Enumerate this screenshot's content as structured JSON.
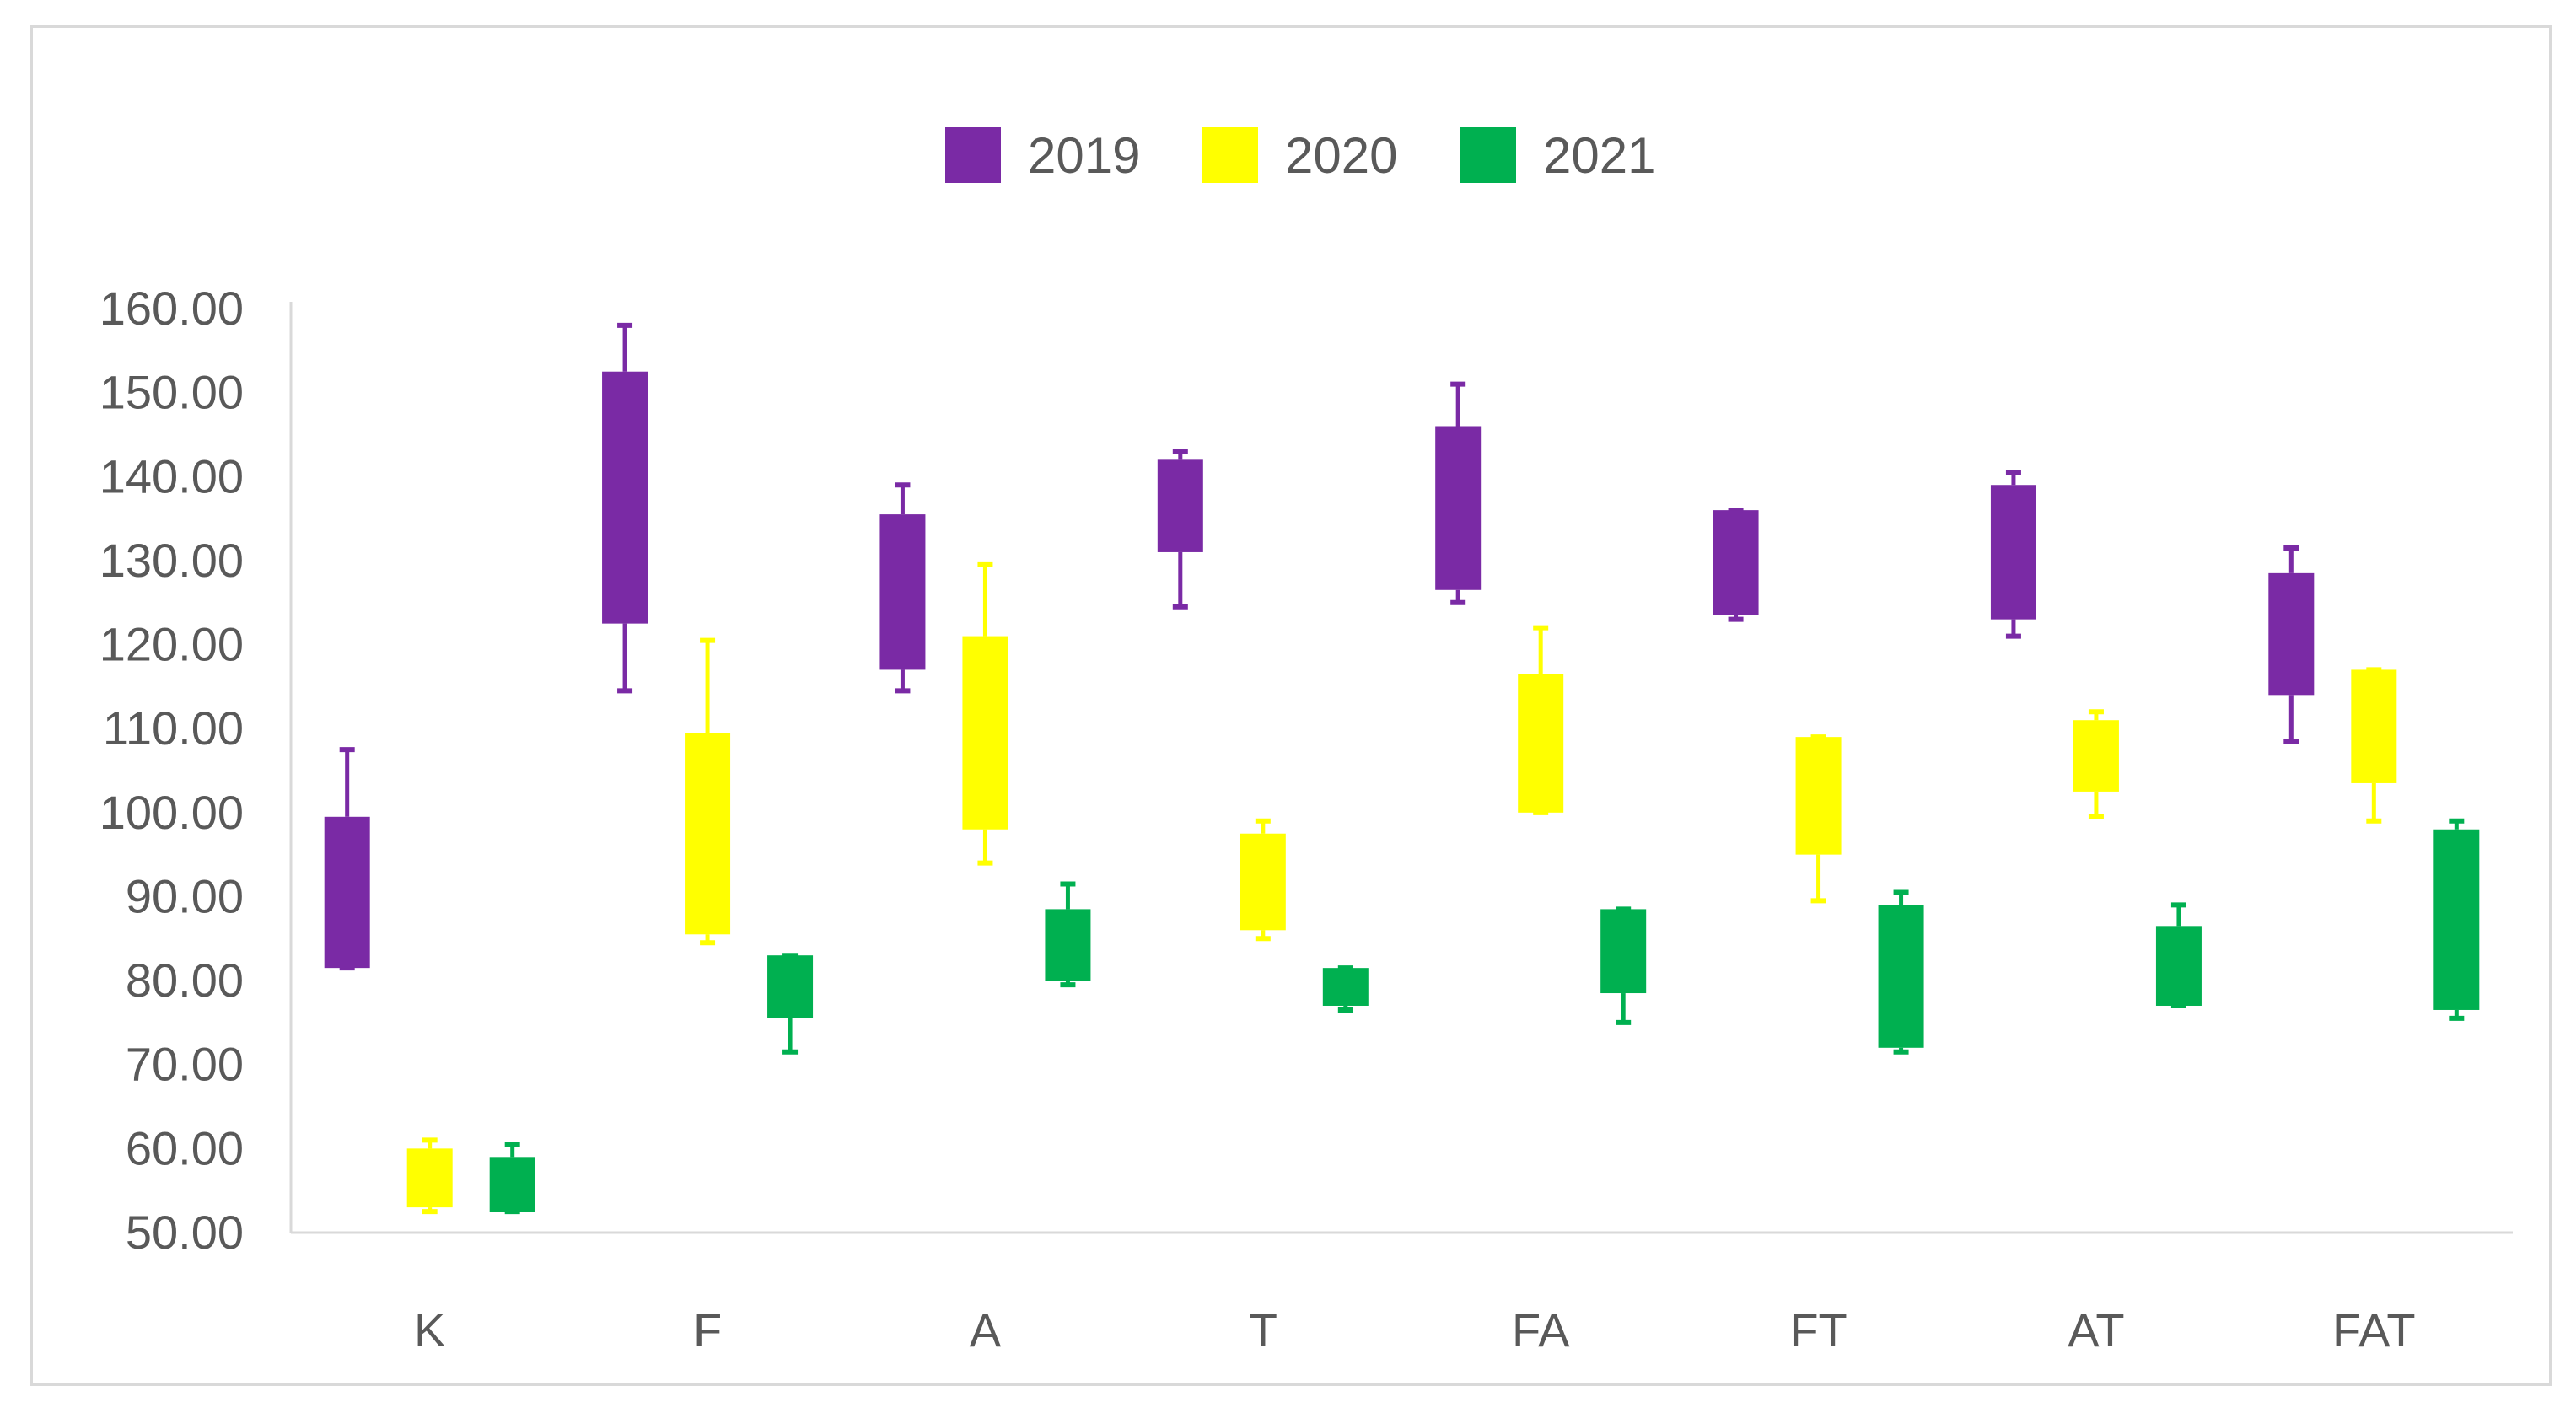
{
  "chart_data": {
    "type": "box",
    "title": "",
    "xlabel": "",
    "ylabel": "",
    "ylim": [
      50,
      160
    ],
    "y_ticks": [
      "50.00",
      "60.00",
      "70.00",
      "80.00",
      "90.00",
      "100.00",
      "110.00",
      "120.00",
      "130.00",
      "140.00",
      "150.00",
      "160.00"
    ],
    "categories": [
      "K",
      "F",
      "A",
      "T",
      "FA",
      "FT",
      "AT",
      "FAT"
    ],
    "legend": {
      "position": "top",
      "entries": [
        "2019",
        "2020",
        "2021"
      ]
    },
    "series": [
      {
        "name": "2019",
        "color": "#7a2aa5",
        "values": [
          {
            "min": 81.5,
            "q1": 81.5,
            "q3": 99.5,
            "max": 107.5
          },
          {
            "min": 114.5,
            "q1": 122.5,
            "q3": 152.5,
            "max": 158
          },
          {
            "min": 114.5,
            "q1": 117,
            "q3": 135.5,
            "max": 139
          },
          {
            "min": 124.5,
            "q1": 131,
            "q3": 142,
            "max": 143
          },
          {
            "min": 125,
            "q1": 126.5,
            "q3": 146,
            "max": 151
          },
          {
            "min": 123,
            "q1": 123.5,
            "q3": 136,
            "max": 136
          },
          {
            "min": 121,
            "q1": 123,
            "q3": 139,
            "max": 140.5
          },
          {
            "min": 108.5,
            "q1": 114,
            "q3": 128.5,
            "max": 131.5
          }
        ]
      },
      {
        "name": "2020",
        "color": "#ffff00",
        "values": [
          {
            "min": 52.5,
            "q1": 53,
            "q3": 60,
            "max": 61
          },
          {
            "min": 84.5,
            "q1": 85.5,
            "q3": 109.5,
            "max": 120.5
          },
          {
            "min": 94,
            "q1": 98,
            "q3": 121,
            "max": 129.5
          },
          {
            "min": 85,
            "q1": 86,
            "q3": 97.5,
            "max": 99
          },
          {
            "min": 100,
            "q1": 100,
            "q3": 116.5,
            "max": 122
          },
          {
            "min": 89.5,
            "q1": 95,
            "q3": 109,
            "max": 109
          },
          {
            "min": 99.5,
            "q1": 102.5,
            "q3": 111,
            "max": 112
          },
          {
            "min": 99,
            "q1": 103.5,
            "q3": 117,
            "max": 117
          }
        ]
      },
      {
        "name": "2021",
        "color": "#00b050",
        "values": [
          {
            "min": 52.5,
            "q1": 52.5,
            "q3": 59,
            "max": 60.5
          },
          {
            "min": 71.5,
            "q1": 75.5,
            "q3": 83,
            "max": 83
          },
          {
            "min": 79.5,
            "q1": 80,
            "q3": 88.5,
            "max": 91.5
          },
          {
            "min": 76.5,
            "q1": 77,
            "q3": 81.5,
            "max": 81.5
          },
          {
            "min": 75,
            "q1": 78.5,
            "q3": 88.5,
            "max": 88.5
          },
          {
            "min": 71.5,
            "q1": 72,
            "q3": 89,
            "max": 90.5
          },
          {
            "min": 77,
            "q1": 77,
            "q3": 86.5,
            "max": 89
          },
          {
            "min": 75.5,
            "q1": 76.5,
            "q3": 98,
            "max": 99
          }
        ]
      }
    ]
  }
}
